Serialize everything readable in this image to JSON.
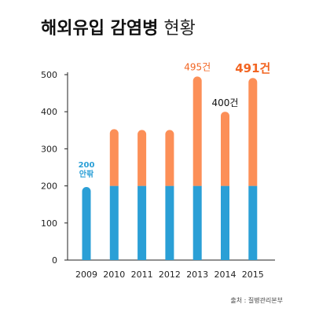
{
  "title": {
    "bold": "해외유입 감염병",
    "light": "현황"
  },
  "source": "출처 : 질병관리본부",
  "chart_data": {
    "type": "bar",
    "stacked": true,
    "categories": [
      "2009",
      "2010",
      "2011",
      "2012",
      "2013",
      "2014",
      "2015"
    ],
    "series": [
      {
        "name": "",
        "color": "#2a9fd6",
        "values": [
          197,
          200,
          200,
          200,
          200,
          200,
          200
        ]
      },
      {
        "name": "",
        "color": "#fc8f57",
        "values": [
          0,
          153,
          151,
          151,
          295,
          200,
          291
        ]
      }
    ],
    "yticks": [
      0,
      100,
      200,
      300,
      400,
      500
    ],
    "ylim": [
      0,
      500
    ],
    "grid": false,
    "annotations": [
      {
        "category": "2009",
        "lines": [
          "200",
          "안팎"
        ],
        "color": "#2a9fd6"
      },
      {
        "category": "2013",
        "lines": [
          "495건"
        ],
        "color": "#f26522"
      },
      {
        "category": "2014",
        "lines": [
          "400건"
        ],
        "color": "#111111"
      },
      {
        "category": "2015",
        "lines": [
          "491건"
        ],
        "color": "#f26522"
      }
    ]
  }
}
